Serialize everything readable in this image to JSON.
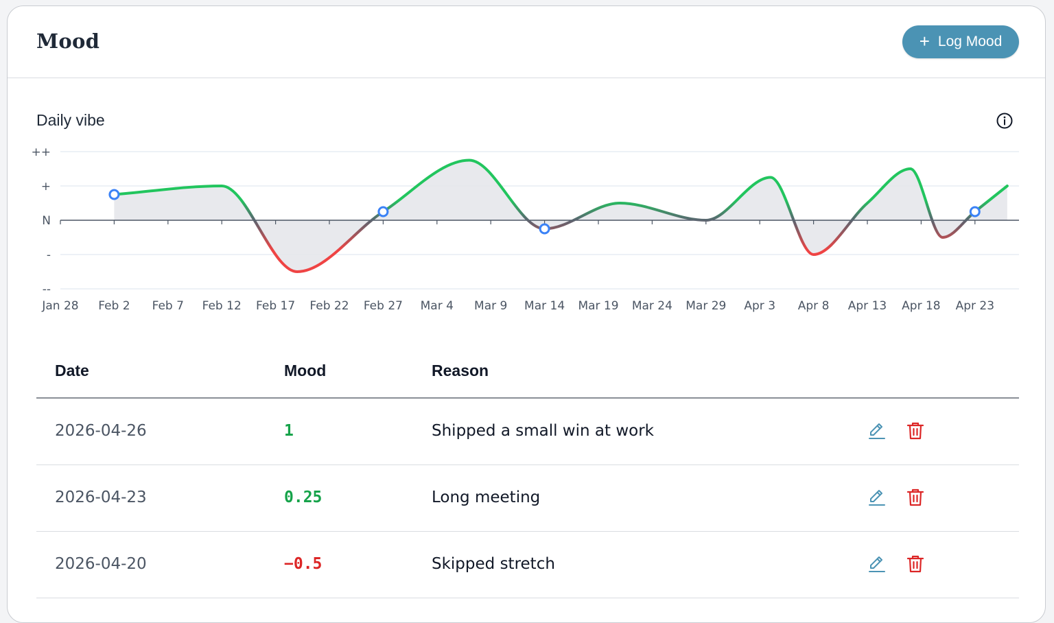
{
  "header": {
    "title": "Mood",
    "log_button_label": "Log Mood",
    "log_button_icon": "plus-icon"
  },
  "chart_card": {
    "subtitle": "Daily vibe",
    "info_icon": "info-icon"
  },
  "colors": {
    "accent": "#4b93b4",
    "positive": "#16a34a",
    "negative": "#dc2626",
    "line_positive": "#22c55e",
    "line_negative": "#ef4444",
    "point": "#3b82f6",
    "area": "#e5e7eb"
  },
  "chart_data": {
    "type": "line",
    "title": "Daily vibe",
    "y_tick_labels": [
      "--",
      "-",
      "N",
      "+",
      "++"
    ],
    "ylim": [
      -2,
      2
    ],
    "x_tick_labels": [
      "Jan 28",
      "Feb 2",
      "Feb 7",
      "Feb 12",
      "Feb 17",
      "Feb 22",
      "Feb 27",
      "Mar 4",
      "Mar 9",
      "Mar 14",
      "Mar 19",
      "Mar 24",
      "Mar 29",
      "Apr 3",
      "Apr 8",
      "Apr 13",
      "Apr 18",
      "Apr 23"
    ],
    "grid": true,
    "series": [
      {
        "x": [
          "2026-02-02",
          "2026-02-12",
          "2026-02-19",
          "2026-02-27",
          "2026-03-07",
          "2026-03-14",
          "2026-03-21",
          "2026-03-29",
          "2026-04-04",
          "2026-04-08",
          "2026-04-13",
          "2026-04-17",
          "2026-04-20",
          "2026-04-23",
          "2026-04-26"
        ],
        "y": [
          0.75,
          1,
          -1.5,
          0.25,
          1.75,
          -0.25,
          0.5,
          0,
          1.25,
          -1,
          0.5,
          1.5,
          -0.5,
          0.25,
          1
        ]
      }
    ],
    "marked_points": [
      {
        "x": "2026-02-02",
        "y": 0.75
      },
      {
        "x": "2026-02-27",
        "y": 0.25
      },
      {
        "x": "2026-03-14",
        "y": -0.25
      },
      {
        "x": "2026-04-23",
        "y": 0.25
      }
    ]
  },
  "table": {
    "headers": {
      "date": "Date",
      "mood": "Mood",
      "reason": "Reason"
    },
    "rows": [
      {
        "date": "2026-04-26",
        "mood": "1",
        "mood_color": "#16a34a",
        "reason": "Shipped a small win at work"
      },
      {
        "date": "2026-04-23",
        "mood": "0.25",
        "mood_color": "#16a34a",
        "reason": "Long meeting"
      },
      {
        "date": "2026-04-20",
        "mood": "−0.5",
        "mood_color": "#dc2626",
        "reason": "Skipped stretch"
      }
    ],
    "row_actions": {
      "edit_icon": "pencil-icon",
      "delete_icon": "trash-icon"
    }
  }
}
